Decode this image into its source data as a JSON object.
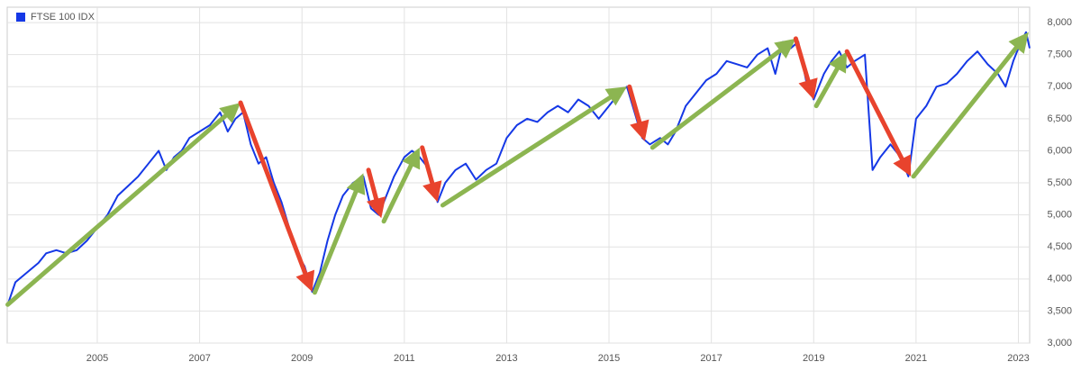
{
  "chart_data": {
    "type": "line",
    "series": [
      {
        "name": "FTSE 100 IDX",
        "color": "#1538e6",
        "x": [
          2003.25,
          2003.4,
          2003.55,
          2003.7,
          2003.85,
          2004.0,
          2004.2,
          2004.4,
          2004.6,
          2004.8,
          2005.0,
          2005.2,
          2005.4,
          2005.6,
          2005.8,
          2006.0,
          2006.2,
          2006.35,
          2006.5,
          2006.65,
          2006.8,
          2007.0,
          2007.2,
          2007.4,
          2007.55,
          2007.7,
          2007.85,
          2008.0,
          2008.15,
          2008.3,
          2008.45,
          2008.6,
          2008.75,
          2008.9,
          2009.05,
          2009.2,
          2009.35,
          2009.5,
          2009.65,
          2009.8,
          2010.0,
          2010.2,
          2010.35,
          2010.5,
          2010.65,
          2010.8,
          2011.0,
          2011.15,
          2011.3,
          2011.5,
          2011.65,
          2011.8,
          2012.0,
          2012.2,
          2012.4,
          2012.6,
          2012.8,
          2013.0,
          2013.2,
          2013.4,
          2013.6,
          2013.8,
          2014.0,
          2014.2,
          2014.4,
          2014.6,
          2014.8,
          2015.0,
          2015.2,
          2015.35,
          2015.5,
          2015.65,
          2015.8,
          2016.0,
          2016.15,
          2016.3,
          2016.5,
          2016.7,
          2016.9,
          2017.1,
          2017.3,
          2017.5,
          2017.7,
          2017.9,
          2018.1,
          2018.25,
          2018.4,
          2018.55,
          2018.7,
          2018.85,
          2019.0,
          2019.2,
          2019.35,
          2019.5,
          2019.65,
          2019.8,
          2020.0,
          2020.15,
          2020.3,
          2020.5,
          2020.7,
          2020.85,
          2021.0,
          2021.2,
          2021.4,
          2021.6,
          2021.8,
          2022.0,
          2022.2,
          2022.4,
          2022.6,
          2022.75,
          2022.9,
          2023.05,
          2023.15,
          2023.22
        ],
        "values": [
          3600,
          3950,
          4050,
          4150,
          4250,
          4400,
          4450,
          4400,
          4450,
          4600,
          4800,
          5000,
          5300,
          5450,
          5600,
          5800,
          6000,
          5700,
          5900,
          6000,
          6200,
          6300,
          6400,
          6600,
          6300,
          6500,
          6600,
          6100,
          5800,
          5900,
          5500,
          5200,
          4800,
          4400,
          4200,
          3800,
          4100,
          4600,
          5000,
          5300,
          5500,
          5600,
          5100,
          5000,
          5300,
          5600,
          5900,
          6000,
          5900,
          5700,
          5200,
          5500,
          5700,
          5800,
          5550,
          5700,
          5800,
          6200,
          6400,
          6500,
          6450,
          6600,
          6700,
          6600,
          6800,
          6700,
          6500,
          6700,
          6900,
          7000,
          6600,
          6200,
          6100,
          6200,
          6100,
          6300,
          6700,
          6900,
          7100,
          7200,
          7400,
          7350,
          7300,
          7500,
          7600,
          7200,
          7700,
          7600,
          7700,
          7100,
          6800,
          7200,
          7400,
          7550,
          7300,
          7400,
          7500,
          5700,
          5900,
          6100,
          5900,
          5600,
          6500,
          6700,
          7000,
          7050,
          7200,
          7400,
          7550,
          7350,
          7200,
          7000,
          7400,
          7700,
          7850,
          7600
        ]
      }
    ],
    "arrows": [
      {
        "color": "#8cb551",
        "x": [
          2003.25,
          2007.8
        ],
        "y": [
          3600,
          6750
        ]
      },
      {
        "color": "#e8432d",
        "x": [
          2007.8,
          2009.2
        ],
        "y": [
          6750,
          3800
        ]
      },
      {
        "color": "#8cb551",
        "x": [
          2009.25,
          2010.2
        ],
        "y": [
          3790,
          5650
        ]
      },
      {
        "color": "#e8432d",
        "x": [
          2010.3,
          2010.55
        ],
        "y": [
          5700,
          4950
        ]
      },
      {
        "color": "#8cb551",
        "x": [
          2010.6,
          2011.3
        ],
        "y": [
          4900,
          6050
        ]
      },
      {
        "color": "#e8432d",
        "x": [
          2011.35,
          2011.65
        ],
        "y": [
          6050,
          5200
        ]
      },
      {
        "color": "#8cb551",
        "x": [
          2011.75,
          2015.35
        ],
        "y": [
          5150,
          7000
        ]
      },
      {
        "color": "#e8432d",
        "x": [
          2015.4,
          2015.7
        ],
        "y": [
          7000,
          6150
        ]
      },
      {
        "color": "#8cb551",
        "x": [
          2015.85,
          2018.65
        ],
        "y": [
          6050,
          7750
        ]
      },
      {
        "color": "#e8432d",
        "x": [
          2018.65,
          2019.0
        ],
        "y": [
          7750,
          6800
        ]
      },
      {
        "color": "#8cb551",
        "x": [
          2019.05,
          2019.65
        ],
        "y": [
          6700,
          7550
        ]
      },
      {
        "color": "#e8432d",
        "x": [
          2019.65,
          2020.9
        ],
        "y": [
          7550,
          5600
        ]
      },
      {
        "color": "#8cb551",
        "x": [
          2020.95,
          2023.2
        ],
        "y": [
          5600,
          7850
        ]
      }
    ],
    "xlim": [
      2003.24,
      2023.22
    ],
    "xticks": [
      2005,
      2007,
      2009,
      2011,
      2013,
      2015,
      2017,
      2019,
      2021,
      2023
    ],
    "ylim": [
      3000,
      8240
    ],
    "yticks": [
      {
        "value": 3000,
        "label": "3,000"
      },
      {
        "value": 3500,
        "label": "3,500"
      },
      {
        "value": 4000,
        "label": "4,000"
      },
      {
        "value": 4500,
        "label": "4,500"
      },
      {
        "value": 5000,
        "label": "5,000"
      },
      {
        "value": 5500,
        "label": "5,500"
      },
      {
        "value": 6000,
        "label": "6,000"
      },
      {
        "value": 6500,
        "label": "6,500"
      },
      {
        "value": 7000,
        "label": "7,000"
      },
      {
        "value": 7500,
        "label": "7,500"
      },
      {
        "value": 8000,
        "label": "8,000"
      }
    ],
    "grid": true,
    "legend": "top-left"
  }
}
